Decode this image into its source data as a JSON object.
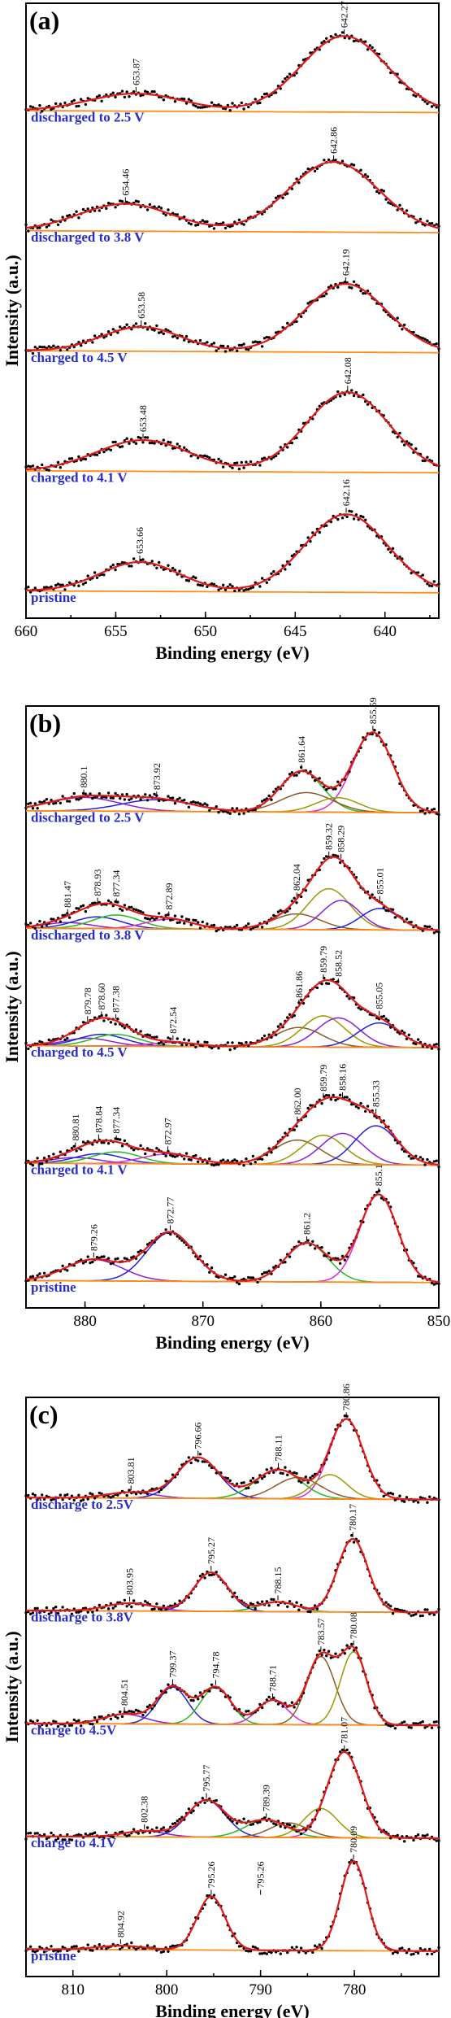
{
  "ylabel": "Intensity (a.u.)",
  "xlabel": "Binding energy (eV)",
  "colors": {
    "envelope": "#e01818",
    "background": "#ff8c1a",
    "points": "#000000",
    "spectrum_label": "#2a2ec8",
    "components": [
      "#8b1fd8",
      "#2020e0",
      "#22bb22",
      "#d828d8",
      "#8b5a2b",
      "#999900"
    ]
  },
  "chart_data": [
    {
      "type": "line",
      "panel": "(a)",
      "xlabel": "Binding energy (eV)",
      "ylabel": "Intensity (a.u.)",
      "xlim": [
        660,
        637
      ],
      "x_ticks": [
        660,
        655,
        650,
        645,
        640
      ],
      "x_tick_labels": [
        "660",
        "655",
        "650",
        "645",
        "640"
      ],
      "series": [
        {
          "name": "discharged to 2.5 V",
          "peaks": [
            {
              "x": 653.87,
              "label": "653.87",
              "amp": 0.18,
              "w": 2.6
            },
            {
              "x": 642.27,
              "label": "642.27",
              "amp": 0.78,
              "w": 2.4
            }
          ],
          "components": []
        },
        {
          "name": "discharged to 3.8 V",
          "peaks": [
            {
              "x": 654.46,
              "label": "654.46",
              "amp": 0.28,
              "w": 2.6
            },
            {
              "x": 642.86,
              "label": "642.86",
              "amp": 0.72,
              "w": 2.5
            }
          ],
          "components": []
        },
        {
          "name": "charged to 4.5 V",
          "peaks": [
            {
              "x": 653.58,
              "label": "653.58",
              "amp": 0.25,
              "w": 2.2
            },
            {
              "x": 642.19,
              "label": "642.19",
              "amp": 0.7,
              "w": 2.3
            }
          ],
          "components": []
        },
        {
          "name": "charged to 4.1 V",
          "peaks": [
            {
              "x": 653.48,
              "label": "653.48",
              "amp": 0.32,
              "w": 2.6
            },
            {
              "x": 642.08,
              "label": "642.08",
              "amp": 0.82,
              "w": 2.3
            }
          ],
          "components": []
        },
        {
          "name": "pristine",
          "peaks": [
            {
              "x": 653.66,
              "label": "653.66",
              "amp": 0.3,
              "w": 2.2
            },
            {
              "x": 642.16,
              "label": "642.16",
              "amp": 0.8,
              "w": 2.3
            }
          ],
          "components": []
        }
      ]
    },
    {
      "type": "line",
      "panel": "(b)",
      "xlabel": "Binding energy (eV)",
      "ylabel": "Intensity (a.u.)",
      "xlim": [
        885,
        850
      ],
      "x_ticks": [
        880,
        870,
        860,
        850
      ],
      "x_tick_labels": [
        "880",
        "870",
        "860",
        "850"
      ],
      "series": [
        {
          "name": "discharged to 2.5 V",
          "peaks": [
            {
              "x": 880.1,
              "label": "880.1",
              "amp": 0.14,
              "w": 3.0
            },
            {
              "x": 873.92,
              "label": "873.92",
              "amp": 0.12,
              "w": 3.0
            },
            {
              "x": 861.64,
              "label": "861.64",
              "amp": 0.42,
              "w": 1.8
            },
            {
              "x": 855.59,
              "label": "855.59",
              "amp": 0.82,
              "w": 1.7
            }
          ],
          "components": [
            {
              "x": 861.2,
              "amp": 0.2,
              "w": 2.2
            },
            {
              "x": 858.6,
              "amp": 0.15,
              "w": 1.8
            }
          ]
        },
        {
          "name": "discharged to 3.8 V",
          "peaks": [
            {
              "x": 881.47,
              "label": "881.47",
              "amp": 0.06,
              "w": 2.0
            },
            {
              "x": 878.93,
              "label": "878.93",
              "amp": 0.12,
              "w": 2.0
            },
            {
              "x": 877.34,
              "label": "877.34",
              "amp": 0.14,
              "w": 2.0
            },
            {
              "x": 872.89,
              "label": "872.89",
              "amp": 0.1,
              "w": 2.0
            },
            {
              "x": 862.04,
              "label": "862.04",
              "amp": 0.16,
              "w": 2.0
            },
            {
              "x": 859.32,
              "label": "859.32",
              "amp": 0.42,
              "w": 1.8
            },
            {
              "x": 858.29,
              "label": "858.29",
              "amp": 0.3,
              "w": 1.6
            },
            {
              "x": 855.01,
              "label": "855.01",
              "amp": 0.22,
              "w": 1.6
            }
          ],
          "components": []
        },
        {
          "name": "charged to 4.5 V",
          "peaks": [
            {
              "x": 879.78,
              "label": "879.78",
              "amp": 0.08,
              "w": 2.0
            },
            {
              "x": 878.6,
              "label": "878.60",
              "amp": 0.12,
              "w": 2.0
            },
            {
              "x": 877.38,
              "label": "877.38",
              "amp": 0.12,
              "w": 2.0
            },
            {
              "x": 872.54,
              "label": "872.54",
              "amp": 0.04,
              "w": 2.0
            },
            {
              "x": 861.86,
              "label": "861.86",
              "amp": 0.2,
              "w": 2.0
            },
            {
              "x": 859.79,
              "label": "859.79",
              "amp": 0.32,
              "w": 1.8
            },
            {
              "x": 858.52,
              "label": "858.52",
              "amp": 0.3,
              "w": 1.8
            },
            {
              "x": 855.05,
              "label": "855.05",
              "amp": 0.25,
              "w": 1.8
            }
          ],
          "components": []
        },
        {
          "name": "charged to 4.1 V",
          "peaks": [
            {
              "x": 880.81,
              "label": "880.81",
              "amp": 0.06,
              "w": 2.0
            },
            {
              "x": 878.84,
              "label": "878.84",
              "amp": 0.1,
              "w": 2.0
            },
            {
              "x": 877.34,
              "label": "877.34",
              "amp": 0.12,
              "w": 2.0
            },
            {
              "x": 872.97,
              "label": "872.97",
              "amp": 0.1,
              "w": 2.2
            },
            {
              "x": 862.0,
              "label": "862.00",
              "amp": 0.25,
              "w": 2.0
            },
            {
              "x": 859.79,
              "label": "859.79",
              "amp": 0.3,
              "w": 1.8
            },
            {
              "x": 858.16,
              "label": "858.16",
              "amp": 0.32,
              "w": 1.8
            },
            {
              "x": 855.33,
              "label": "855.33",
              "amp": 0.4,
              "w": 1.8
            }
          ],
          "components": []
        },
        {
          "name": "pristine",
          "peaks": [
            {
              "x": 879.26,
              "label": "879.26",
              "amp": 0.22,
              "w": 2.4
            },
            {
              "x": 872.77,
              "label": "872.77",
              "amp": 0.5,
              "w": 2.0
            },
            {
              "x": 861.2,
              "label": "861.2",
              "amp": 0.4,
              "w": 1.8
            },
            {
              "x": 855.1,
              "label": "855.1",
              "amp": 0.9,
              "w": 1.6
            }
          ],
          "components": []
        }
      ]
    },
    {
      "type": "line",
      "panel": "(c)",
      "xlabel": "Binding energy (eV)",
      "ylabel": "Intensity (a.u.)",
      "xlim": [
        815,
        771
      ],
      "x_ticks": [
        810,
        800,
        790,
        780
      ],
      "x_tick_labels": [
        "810",
        "800",
        "790",
        "780"
      ],
      "series": [
        {
          "name": "discharge to 2.5V",
          "peaks": [
            {
              "x": 803.81,
              "label": "803.81",
              "amp": 0.06,
              "w": 2.5
            },
            {
              "x": 796.66,
              "label": "796.66",
              "amp": 0.42,
              "w": 2.2
            },
            {
              "x": 788.11,
              "label": "788.11",
              "amp": 0.3,
              "w": 2.4
            },
            {
              "x": 780.86,
              "label": "780.86",
              "amp": 0.82,
              "w": 1.8
            }
          ],
          "components": [
            {
              "x": 786.0,
              "amp": 0.22,
              "w": 2.4
            },
            {
              "x": 782.6,
              "amp": 0.25,
              "w": 1.8
            }
          ]
        },
        {
          "name": "discharge to 3.8V",
          "peaks": [
            {
              "x": 803.95,
              "label": "803.95",
              "amp": 0.08,
              "w": 2.5
            },
            {
              "x": 795.27,
              "label": "795.27",
              "amp": 0.4,
              "w": 1.8
            },
            {
              "x": 788.15,
              "label": "788.15",
              "amp": 0.1,
              "w": 2.0
            },
            {
              "x": 780.17,
              "label": "780.17",
              "amp": 0.75,
              "w": 1.6
            }
          ],
          "components": []
        },
        {
          "name": "charge to 4.5V",
          "peaks": [
            {
              "x": 804.51,
              "label": "804.51",
              "amp": 0.1,
              "w": 2.2
            },
            {
              "x": 799.37,
              "label": "799.37",
              "amp": 0.38,
              "w": 1.6
            },
            {
              "x": 794.78,
              "label": "794.78",
              "amp": 0.38,
              "w": 1.6
            },
            {
              "x": 788.71,
              "label": "788.71",
              "amp": 0.25,
              "w": 1.6
            },
            {
              "x": 783.57,
              "label": "783.57",
              "amp": 0.7,
              "w": 1.5
            },
            {
              "x": 780.08,
              "label": "780.08",
              "amp": 0.75,
              "w": 1.4
            }
          ],
          "components": []
        },
        {
          "name": "charge to 4.1V",
          "peaks": [
            {
              "x": 802.38,
              "label": "802.38",
              "amp": 0.06,
              "w": 2.2
            },
            {
              "x": 795.77,
              "label": "795.77",
              "amp": 0.38,
              "w": 2.0
            },
            {
              "x": 789.39,
              "label": "789.39",
              "amp": 0.18,
              "w": 2.2
            },
            {
              "x": 781.07,
              "label": "781.07",
              "amp": 0.88,
              "w": 1.8
            }
          ],
          "components": [
            {
              "x": 787.0,
              "amp": 0.15,
              "w": 2.0
            },
            {
              "x": 783.6,
              "amp": 0.3,
              "w": 1.8
            }
          ]
        },
        {
          "name": "pristine",
          "peaks": [
            {
              "x": 804.92,
              "label": "804.92",
              "amp": 0.04,
              "w": 2.5
            },
            {
              "x": 795.26,
              "label": "795.26",
              "amp": 0.55,
              "w": 1.5
            },
            {
              "x": 795.26,
              "label": "795.26",
              "amp": 0.0,
              "w": 2.0,
              "label_x": 790.0
            },
            {
              "x": 780.09,
              "label": "780.09",
              "amp": 0.92,
              "w": 1.4
            }
          ],
          "components": []
        }
      ]
    }
  ]
}
